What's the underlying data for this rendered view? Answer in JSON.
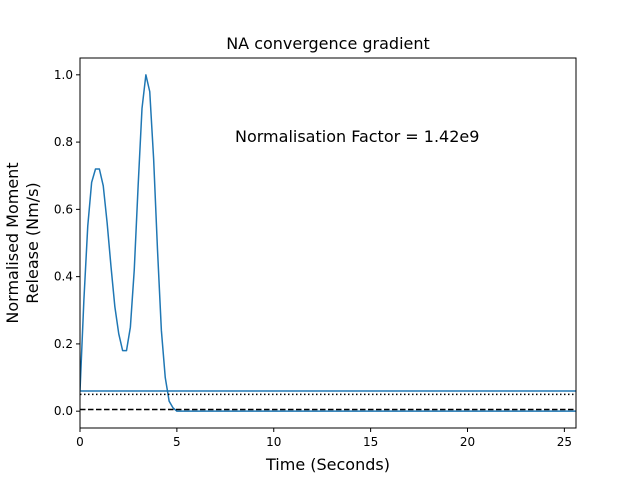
{
  "chart_data": {
    "type": "line",
    "title": "NA convergence gradient",
    "xlabel": "Time (Seconds)",
    "ylabel_lines": [
      "Normalised Moment",
      "Release (Nm/s)"
    ],
    "annotation": "Normalisation Factor = 1.42e9",
    "annotation_position": {
      "x": 8.0,
      "y": 0.8
    },
    "xlim": [
      0,
      25.6
    ],
    "ylim": [
      -0.05,
      1.05
    ],
    "x_ticks": [
      0,
      5,
      10,
      15,
      20,
      25
    ],
    "y_ticks": [
      0.0,
      0.2,
      0.4,
      0.6,
      0.8,
      1.0
    ],
    "x_tick_labels": [
      "0",
      "5",
      "10",
      "15",
      "20",
      "25"
    ],
    "y_tick_labels": [
      "0.0",
      "0.2",
      "0.4",
      "0.6",
      "0.8",
      "1.0"
    ],
    "grid": false,
    "series": [
      {
        "style": "solid",
        "color": "#1f77b4",
        "x": [
          0,
          0.2,
          0.4,
          0.6,
          0.8,
          1.0,
          1.2,
          1.4,
          1.6,
          1.8,
          2.0,
          2.2,
          2.4,
          2.6,
          2.8,
          3.0,
          3.2,
          3.4,
          3.6,
          3.8,
          4.0,
          4.2,
          4.4,
          4.6,
          4.8,
          5.0,
          5.2,
          5.4,
          5.6,
          6.0,
          8.0,
          12.0,
          16.0,
          20.0,
          25.6
        ],
        "y": [
          0.06,
          0.33,
          0.55,
          0.68,
          0.72,
          0.72,
          0.67,
          0.56,
          0.43,
          0.31,
          0.23,
          0.18,
          0.18,
          0.25,
          0.42,
          0.67,
          0.9,
          1.0,
          0.95,
          0.75,
          0.48,
          0.24,
          0.1,
          0.03,
          0.01,
          0.0,
          0.0,
          0.0,
          0.0,
          0.0,
          0.0,
          0.0,
          0.0,
          0.0,
          0.0
        ]
      },
      {
        "style": "solid",
        "color": "#1f77b4",
        "x": [
          0,
          25.6
        ],
        "y": [
          0.06,
          0.06
        ]
      },
      {
        "style": "dotted",
        "color": "#000000",
        "x": [
          0,
          25.6
        ],
        "y": [
          0.05,
          0.05
        ]
      },
      {
        "style": "dashed",
        "color": "#000000",
        "x": [
          0,
          25.6
        ],
        "y": [
          0.005,
          0.005
        ]
      }
    ]
  }
}
